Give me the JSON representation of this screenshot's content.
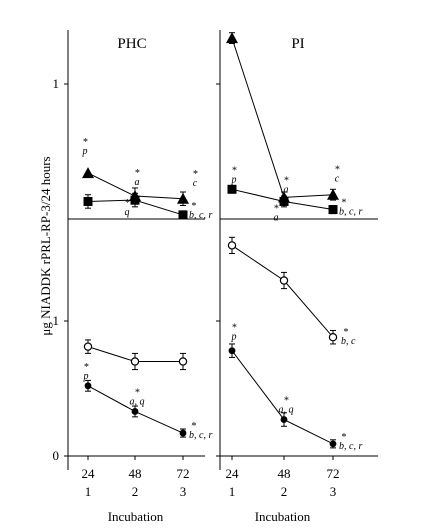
{
  "chart_data": {
    "type": "line",
    "ylabel": "μg NIADDK rPRL-RP-3/24 hours",
    "x_ticks": [
      "24",
      "48",
      "72"
    ],
    "x_subticks": [
      "1",
      "2",
      "3"
    ],
    "xlabel": "Incubation",
    "panels": [
      {
        "title": "PHC",
        "upper": {
          "ylim": [
            0,
            1.4
          ],
          "yticks": [
            "1"
          ],
          "series": [
            {
              "marker": "triangle",
              "values": [
                0.34,
                0.17,
                0.15
              ],
              "errors": [
                0,
                0.06,
                0.05
              ]
            },
            {
              "marker": "square",
              "values": [
                0.13,
                0.14,
                0.03
              ],
              "errors": [
                0.05,
                0.05,
                0.03
              ]
            }
          ]
        },
        "lower": {
          "ylim": [
            0,
            1.55
          ],
          "yticks": [
            "1",
            "0"
          ],
          "series": [
            {
              "marker": "open-circle",
              "values": [
                0.81,
                0.7,
                0.7
              ],
              "errors": [
                0.05,
                0.06,
                0.06
              ]
            },
            {
              "marker": "filled-circle",
              "values": [
                0.52,
                0.33,
                0.17
              ],
              "errors": [
                0.04,
                0.04,
                0.03
              ]
            }
          ]
        },
        "annotations": [
          {
            "text": "*\np",
            "point": [
              0,
              0.34
            ],
            "part": "upper"
          },
          {
            "text": "*\na",
            "point": [
              1,
              0.17
            ],
            "part": "upper"
          },
          {
            "text": "*\nq",
            "point": [
              1,
              0.14
            ],
            "part": "upper"
          },
          {
            "text": "*\nc",
            "point": [
              2,
              0.15
            ],
            "part": "upper"
          },
          {
            "text": "*\nb, c, r",
            "point": [
              2,
              0.03
            ],
            "part": "upper"
          },
          {
            "text": "*\np",
            "point": [
              0,
              0.52
            ],
            "part": "lower"
          },
          {
            "text": "*\na, q",
            "point": [
              1,
              0.33
            ],
            "part": "lower"
          },
          {
            "text": "*\nb, c, r",
            "point": [
              2,
              0.17
            ],
            "part": "lower"
          }
        ]
      },
      {
        "title": "PI",
        "upper": {
          "ylim": [
            0,
            1.4
          ],
          "yticks": [],
          "series": [
            {
              "marker": "triangle",
              "values": [
                1.34,
                0.16,
                0.18
              ],
              "errors": [
                0.04,
                0.04,
                0.04
              ]
            },
            {
              "marker": "square",
              "values": [
                0.22,
                0.13,
                0.07
              ],
              "errors": [
                0,
                0.04,
                0.03
              ]
            }
          ]
        },
        "lower": {
          "ylim": [
            0,
            1.55
          ],
          "yticks": [],
          "series": [
            {
              "marker": "open-circle",
              "values": [
                1.56,
                1.3,
                0.88
              ],
              "errors": [
                0.06,
                0.06,
                0.05
              ]
            },
            {
              "marker": "filled-circle",
              "values": [
                0.78,
                0.27,
                0.09
              ],
              "errors": [
                0.05,
                0.05,
                0.03
              ]
            }
          ]
        },
        "annotations": [
          {
            "text": "*\np",
            "point": [
              0,
              0.22
            ],
            "part": "upper"
          },
          {
            "text": "*\na",
            "point": [
              1,
              0.16
            ],
            "part": "upper"
          },
          {
            "text": "*\na",
            "point": [
              1,
              0.13
            ],
            "part": "upper"
          },
          {
            "text": "*\nc",
            "point": [
              2,
              0.18
            ],
            "part": "upper"
          },
          {
            "text": "*\nb, c, r",
            "point": [
              2,
              0.07
            ],
            "part": "upper"
          },
          {
            "text": "*\nb, c",
            "point": [
              2,
              0.88
            ],
            "part": "lower"
          },
          {
            "text": "*\np",
            "point": [
              0,
              0.78
            ],
            "part": "lower"
          },
          {
            "text": "*\na, q",
            "point": [
              1,
              0.27
            ],
            "part": "lower"
          },
          {
            "text": "*\nb, c, r",
            "point": [
              2,
              0.09
            ],
            "part": "lower"
          }
        ]
      }
    ]
  }
}
